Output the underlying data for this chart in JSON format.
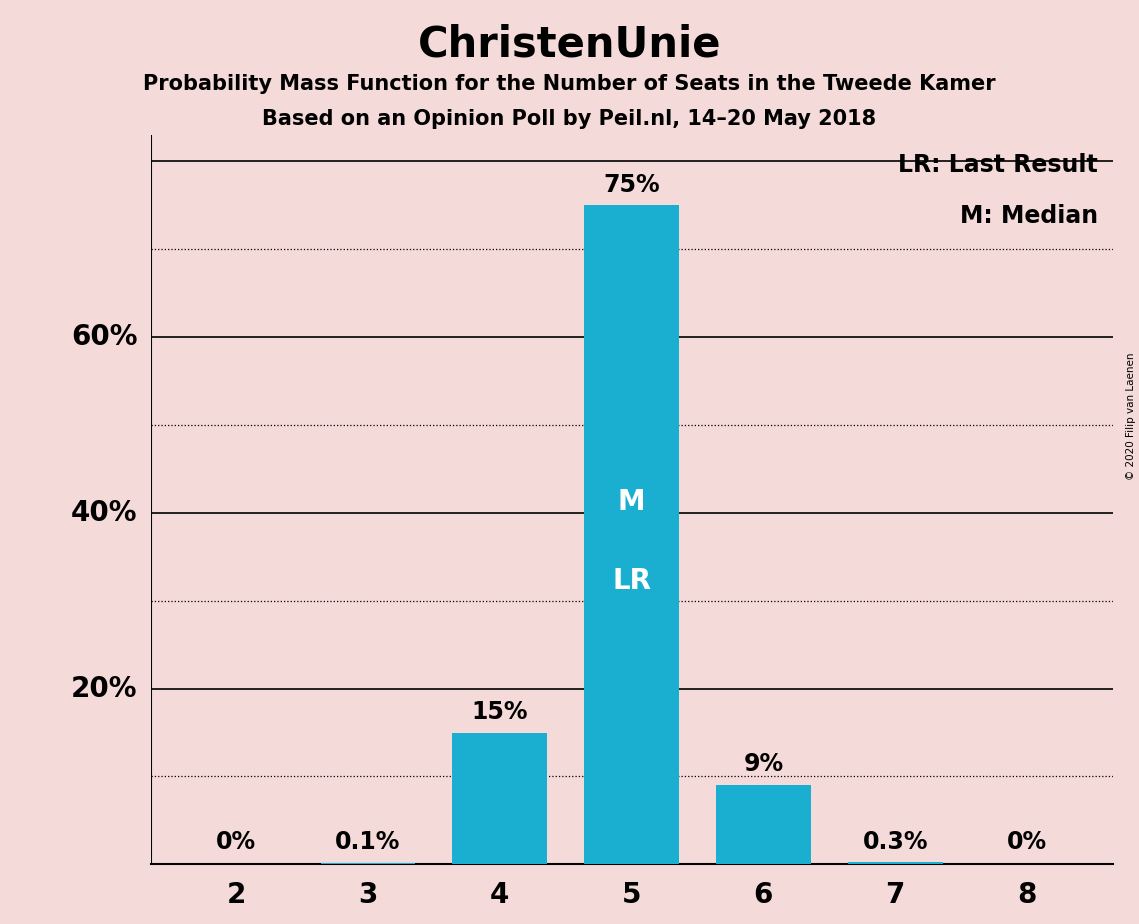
{
  "title": "ChristenUnie",
  "subtitle1": "Probability Mass Function for the Number of Seats in the Tweede Kamer",
  "subtitle2": "Based on an Opinion Poll by Peil.nl, 14–20 May 2018",
  "copyright": "© 2020 Filip van Laenen",
  "legend_lr": "LR: Last Result",
  "legend_m": "M: Median",
  "categories": [
    2,
    3,
    4,
    5,
    6,
    7,
    8
  ],
  "values": [
    0.0,
    0.1,
    15.0,
    75.0,
    9.0,
    0.3,
    0.0
  ],
  "bar_color": "#1aafd0",
  "background_color": "#f5dada",
  "solid_lines": [
    0,
    20,
    40,
    60,
    80
  ],
  "dotted_lines": [
    10,
    30,
    50,
    70
  ],
  "bar_labels": [
    "0%",
    "0.1%",
    "15%",
    "75%",
    "9%",
    "0.3%",
    "0%"
  ],
  "median_seat": 5,
  "last_result_seat": 5,
  "title_fontsize": 30,
  "subtitle_fontsize": 15,
  "axis_tick_fontsize": 20,
  "bar_label_fontsize": 17,
  "legend_fontsize": 17,
  "marker_fontsize": 20,
  "ytick_labels_positions": [
    20,
    40,
    60
  ],
  "ylim": [
    0,
    83
  ]
}
